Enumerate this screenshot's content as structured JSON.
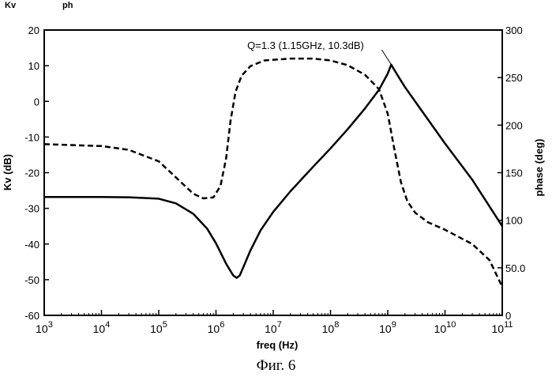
{
  "header": {
    "kv_label": "Kv",
    "ph_label": "ph"
  },
  "caption": "Фиг. 6",
  "chart_data": {
    "type": "line",
    "xlabel": "freq (Hz)",
    "ylabel_left": "Kv (dB)",
    "ylabel_right": "phase (deg)",
    "x_scale": "log",
    "xlim": [
      1000,
      100000000000
    ],
    "ylim_left": [
      -60,
      20
    ],
    "ylim_right": [
      0,
      300
    ],
    "x_ticks": [
      {
        "value": 1000,
        "base": "10",
        "exp": "3"
      },
      {
        "value": 10000,
        "base": "10",
        "exp": "4"
      },
      {
        "value": 100000,
        "base": "10",
        "exp": "5"
      },
      {
        "value": 1000000,
        "base": "10",
        "exp": "6"
      },
      {
        "value": 10000000,
        "base": "10",
        "exp": "7"
      },
      {
        "value": 100000000,
        "base": "10",
        "exp": "8"
      },
      {
        "value": 1000000000,
        "base": "10",
        "exp": "9"
      },
      {
        "value": 10000000000,
        "base": "10",
        "exp": "10"
      },
      {
        "value": 100000000000,
        "base": "10",
        "exp": "11"
      }
    ],
    "y_ticks_left": [
      "20",
      "10",
      "0",
      "-10",
      "-20",
      "-30",
      "-40",
      "-50",
      "-60"
    ],
    "y_ticks_right": [
      "300",
      "250",
      "200",
      "150",
      "100",
      "50.0",
      "0"
    ],
    "annotation": {
      "text": "Q=1.3 (1.15GHz, 10.3dB)",
      "x": 1150000000,
      "y": 10.3
    },
    "series": [
      {
        "axis": "left",
        "style": "solid",
        "x": [
          1000,
          10000,
          30000,
          100000,
          200000,
          400000,
          700000,
          1000000,
          1500000,
          2000000,
          2300000,
          2600000,
          3000000,
          4000000,
          6000000,
          10000000,
          20000000,
          50000000,
          100000000,
          200000000,
          400000000,
          700000000,
          1000000000,
          1150000000,
          1400000000,
          2000000000,
          4000000000,
          10000000000,
          30000000000,
          100000000000
        ],
        "y": [
          -26.8,
          -26.8,
          -26.9,
          -27.3,
          -28.6,
          -31.5,
          -35.7,
          -39.8,
          -45.5,
          -48.8,
          -49.5,
          -48.8,
          -46.5,
          -41.8,
          -36.2,
          -31.0,
          -25.2,
          -18.3,
          -13.2,
          -7.8,
          -2.0,
          3.2,
          7.8,
          10.3,
          8.0,
          4.0,
          -2.8,
          -11.8,
          -22.0,
          -35.0
        ]
      },
      {
        "axis": "right",
        "style": "dashed",
        "x": [
          1000,
          10000,
          30000,
          100000,
          200000,
          400000,
          600000,
          900000,
          1200000,
          1500000,
          1800000,
          2200000,
          2800000,
          4000000,
          7000000,
          20000000,
          50000000,
          100000000,
          200000000,
          400000000,
          700000000,
          1000000000,
          1300000000,
          1700000000,
          2200000000,
          3000000000,
          5000000000,
          10000000000,
          30000000000,
          60000000000,
          100000000000
        ],
        "y": [
          180,
          178,
          174,
          162,
          145,
          128,
          123,
          124,
          136,
          165,
          205,
          235,
          252,
          262,
          268,
          270,
          270,
          268,
          263,
          253,
          238,
          212,
          175,
          140,
          120,
          108,
          98,
          90,
          75,
          58,
          30
        ]
      }
    ]
  }
}
